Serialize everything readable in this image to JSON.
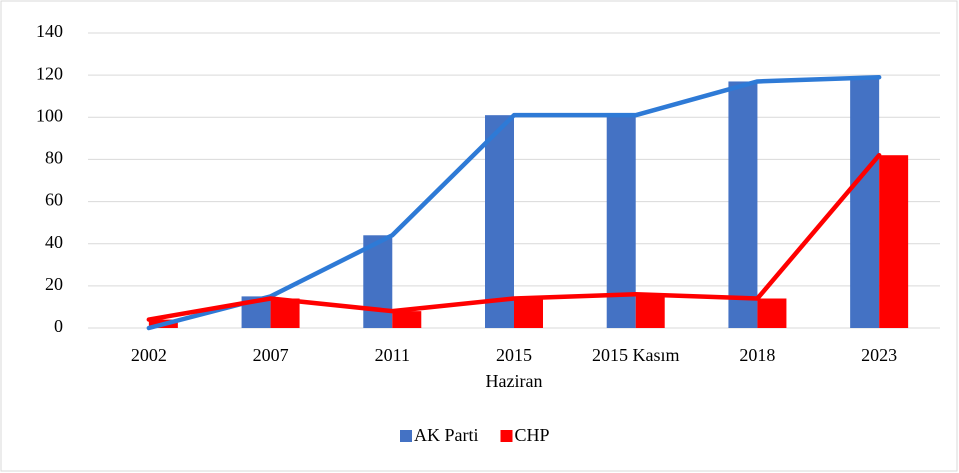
{
  "chart_data": {
    "type": "bar",
    "line_overlay": true,
    "categories": [
      "2002",
      "2007",
      "2011",
      [
        "2015",
        "Haziran"
      ],
      "2015 Kasım",
      "2018",
      "2023"
    ],
    "series": [
      {
        "name": "AK Parti",
        "color": "#4472c4",
        "line_color": "#2e7ad6",
        "values": [
          0,
          15,
          44,
          101,
          101,
          117,
          119
        ]
      },
      {
        "name": "CHP",
        "color": "#ff0000",
        "line_color": "#ff0000",
        "values": [
          4,
          14,
          8,
          14,
          16,
          14,
          82
        ]
      }
    ],
    "ylim": [
      0,
      140
    ],
    "yticks": [
      0,
      20,
      40,
      60,
      80,
      100,
      120,
      140
    ],
    "grid": true,
    "legend": "bottom"
  }
}
